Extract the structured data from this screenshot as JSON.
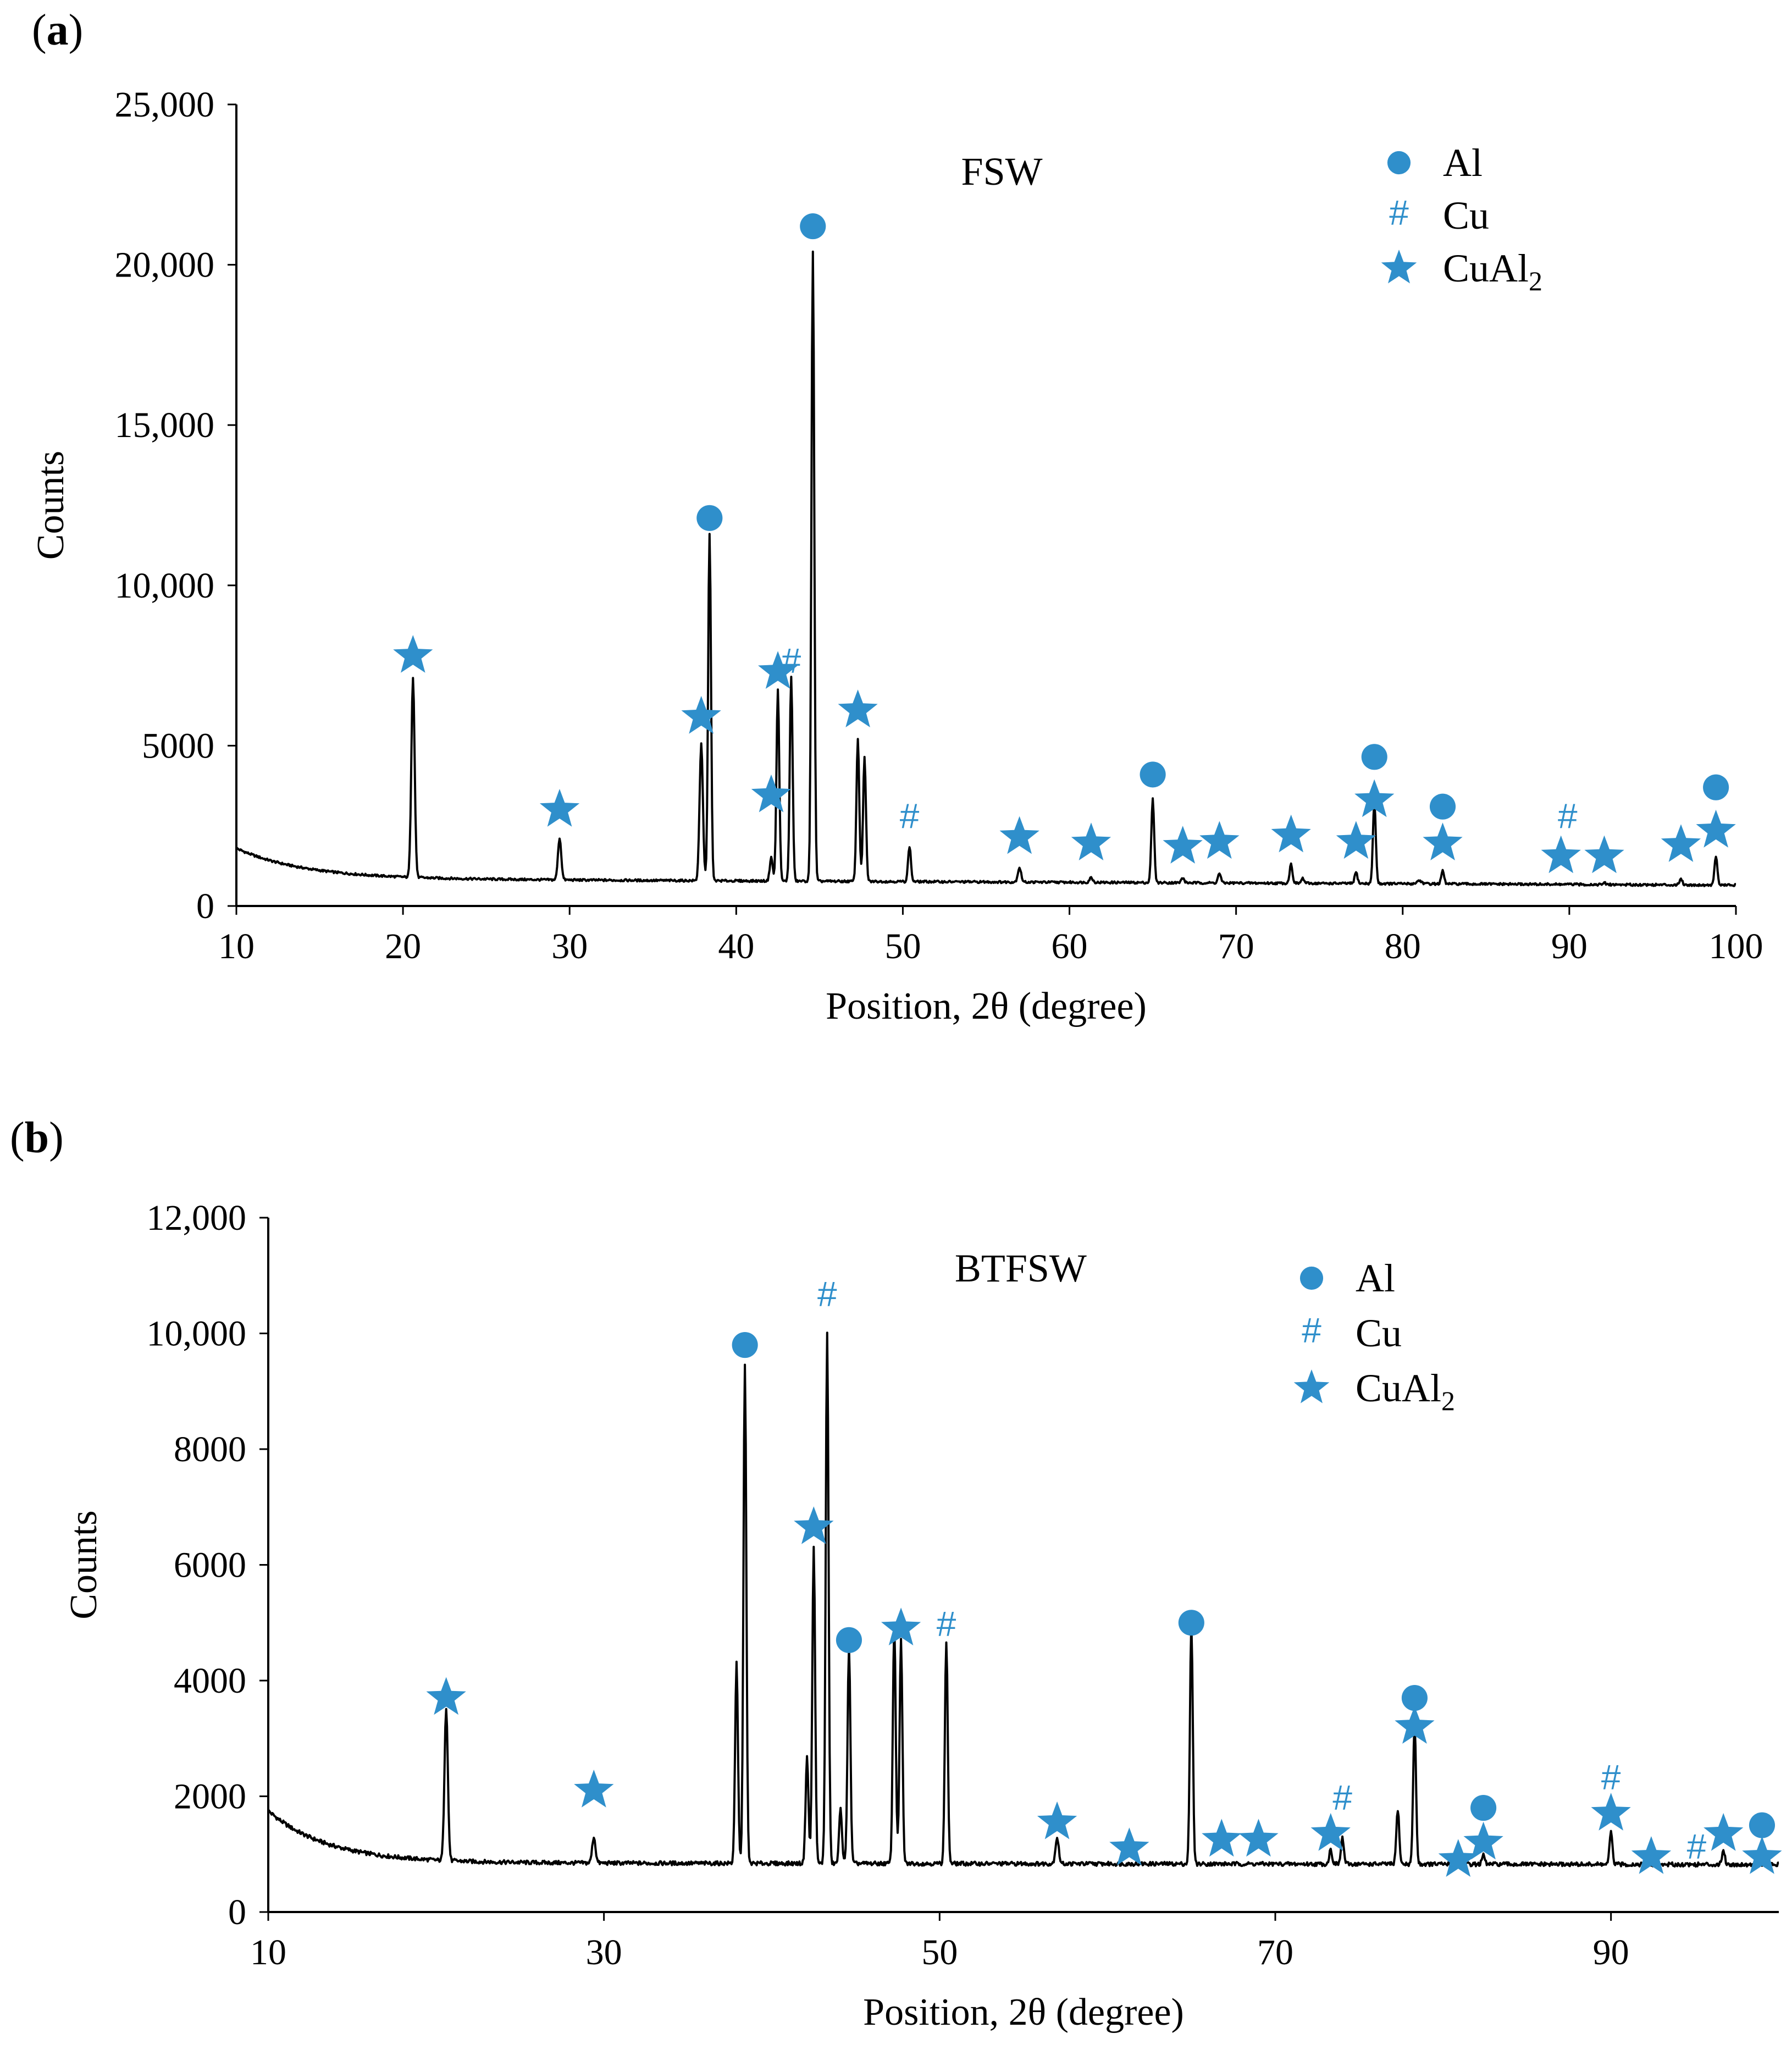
{
  "colors": {
    "marker": "#2f8fcb",
    "line": "#000000",
    "axis": "#000000"
  },
  "chart_data": [
    {
      "id": "a",
      "panel_label": "(a)",
      "type": "line",
      "sample_label": "FSW",
      "xlabel": "Position, 2θ (degree)",
      "ylabel": "Counts",
      "xlim": [
        10,
        100
      ],
      "ylim": [
        0,
        25000
      ],
      "x_ticks": [
        10,
        20,
        30,
        40,
        50,
        60,
        70,
        80,
        90,
        100
      ],
      "x_tick_labels": [
        "10",
        "20",
        "30",
        "40",
        "50",
        "60",
        "70",
        "80",
        "90",
        "100"
      ],
      "y_ticks": [
        0,
        5000,
        10000,
        15000,
        20000,
        25000
      ],
      "y_tick_labels": [
        "0",
        "5000",
        "10,000",
        "15,000",
        "20,000",
        "25,000"
      ],
      "legend": [
        {
          "marker": "circle",
          "label": "Al"
        },
        {
          "marker": "hash",
          "label": "Cu"
        },
        {
          "marker": "star",
          "label": "CuAl",
          "sub": "2"
        }
      ],
      "baseline": {
        "start": 1800,
        "floor": 850,
        "decay": 4.0,
        "tail": 650
      },
      "peaks": [
        {
          "x": 20.6,
          "y": 7100,
          "w": 0.14,
          "marker": "star",
          "my": 7800
        },
        {
          "x": 29.4,
          "y": 2150,
          "w": 0.14,
          "marker": "star",
          "my": 3000
        },
        {
          "x": 37.9,
          "y": 5100,
          "w": 0.14,
          "marker": "star",
          "my": 5900
        },
        {
          "x": 38.4,
          "y": 11700,
          "w": 0.12,
          "marker": "circle",
          "my": 12100
        },
        {
          "x": 42.1,
          "y": 1600,
          "w": 0.12,
          "marker": "star",
          "my": 3450
        },
        {
          "x": 42.5,
          "y": 6800,
          "w": 0.12,
          "marker": "star",
          "my": 7300
        },
        {
          "x": 43.3,
          "y": 7200,
          "w": 0.12,
          "marker": "hash",
          "my": 7600
        },
        {
          "x": 44.6,
          "y": 20500,
          "w": 0.12,
          "marker": "circle",
          "my": 21200
        },
        {
          "x": 47.3,
          "y": 5300,
          "w": 0.12,
          "marker": "star",
          "my": 6100
        },
        {
          "x": 47.7,
          "y": 4700,
          "w": 0.12
        },
        {
          "x": 50.4,
          "y": 1950,
          "w": 0.12,
          "marker": "hash",
          "my": 2750
        },
        {
          "x": 57.0,
          "y": 1300,
          "w": 0.14,
          "marker": "star",
          "my": 2150
        },
        {
          "x": 61.3,
          "y": 1000,
          "w": 0.14,
          "marker": "star",
          "my": 1950
        },
        {
          "x": 65.0,
          "y": 3450,
          "w": 0.12,
          "marker": "circle",
          "my": 4100
        },
        {
          "x": 66.8,
          "y": 1000,
          "w": 0.12,
          "marker": "star",
          "my": 1850
        },
        {
          "x": 69.0,
          "y": 1150,
          "w": 0.12,
          "marker": "star",
          "my": 2000
        },
        {
          "x": 73.3,
          "y": 1450,
          "w": 0.12,
          "marker": "star",
          "my": 2200
        },
        {
          "x": 74.0,
          "y": 1000,
          "w": 0.12
        },
        {
          "x": 77.2,
          "y": 1200,
          "w": 0.12,
          "marker": "star",
          "my": 2000
        },
        {
          "x": 78.3,
          "y": 3400,
          "w": 0.12,
          "marker": "star",
          "my": 3300
        },
        {
          "x": 78.3,
          "y": 0,
          "w": 0.12,
          "marker": "circle",
          "my": 4650
        },
        {
          "x": 81.0,
          "y": 950,
          "w": 0.2
        },
        {
          "x": 82.4,
          "y": 1250,
          "w": 0.12,
          "marker": "star",
          "my": 1950
        },
        {
          "x": 82.4,
          "y": 0,
          "w": 0.12,
          "marker": "circle",
          "my": 3100
        },
        {
          "x": 89.5,
          "y": 800,
          "w": 0.12,
          "marker": "star",
          "my": 1550
        },
        {
          "x": 89.9,
          "y": 850,
          "w": 0.12,
          "marker": "hash",
          "my": 2750
        },
        {
          "x": 92.1,
          "y": 900,
          "w": 0.12,
          "marker": "star",
          "my": 1550
        },
        {
          "x": 96.7,
          "y": 1050,
          "w": 0.12,
          "marker": "star",
          "my": 1900
        },
        {
          "x": 98.8,
          "y": 1750,
          "w": 0.12,
          "marker": "star",
          "my": 2350
        },
        {
          "x": 98.8,
          "y": 0,
          "w": 0.12,
          "marker": "circle",
          "my": 3700
        }
      ]
    },
    {
      "id": "b",
      "panel_label": "(b)",
      "type": "line",
      "sample_label": "BTFSW",
      "xlabel": "Position, 2θ (degree)",
      "ylabel": "Counts",
      "xlim": [
        10,
        100
      ],
      "ylim": [
        0,
        12000
      ],
      "x_ticks": [
        10,
        30,
        50,
        70,
        90
      ],
      "x_tick_labels": [
        "10",
        "30",
        "50",
        "70",
        "90"
      ],
      "y_ticks": [
        0,
        2000,
        4000,
        6000,
        8000,
        10000,
        12000
      ],
      "y_tick_labels": [
        "0",
        "2000",
        "4000",
        "6000",
        "8000",
        "10,000",
        "12,000"
      ],
      "legend": [
        {
          "marker": "circle",
          "label": "Al"
        },
        {
          "marker": "hash",
          "label": "Cu"
        },
        {
          "marker": "star",
          "label": "CuAl",
          "sub": "2"
        }
      ],
      "baseline": {
        "start": 1750,
        "floor": 850,
        "decay": 3.5,
        "tail": 820
      },
      "peaks": [
        {
          "x": 20.6,
          "y": 3500,
          "w": 0.14,
          "marker": "star",
          "my": 3700
        },
        {
          "x": 29.4,
          "y": 1300,
          "w": 0.14,
          "marker": "star",
          "my": 2100
        },
        {
          "x": 37.9,
          "y": 4300,
          "w": 0.12
        },
        {
          "x": 38.4,
          "y": 9500,
          "w": 0.12,
          "marker": "circle",
          "my": 9800
        },
        {
          "x": 42.1,
          "y": 2700,
          "w": 0.12
        },
        {
          "x": 42.5,
          "y": 6300,
          "w": 0.12,
          "marker": "star",
          "my": 6650
        },
        {
          "x": 43.3,
          "y": 10000,
          "w": 0.12,
          "marker": "hash",
          "my": 10650
        },
        {
          "x": 44.1,
          "y": 1800,
          "w": 0.12
        },
        {
          "x": 44.6,
          "y": 4600,
          "w": 0.12,
          "marker": "circle",
          "my": 4700
        },
        {
          "x": 47.3,
          "y": 5000,
          "w": 0.12
        },
        {
          "x": 47.7,
          "y": 4700,
          "w": 0.12,
          "marker": "star",
          "my": 4900
        },
        {
          "x": 50.4,
          "y": 4700,
          "w": 0.12,
          "marker": "hash",
          "my": 4950
        },
        {
          "x": 57.0,
          "y": 1300,
          "w": 0.14,
          "marker": "star",
          "my": 1550
        },
        {
          "x": 61.3,
          "y": 800,
          "w": 0.14,
          "marker": "star",
          "my": 1100
        },
        {
          "x": 65.0,
          "y": 5000,
          "w": 0.12,
          "marker": "circle",
          "my": 5000
        },
        {
          "x": 66.8,
          "y": 800,
          "w": 0.12,
          "marker": "star",
          "my": 1250
        },
        {
          "x": 69.0,
          "y": 800,
          "w": 0.12,
          "marker": "star",
          "my": 1250
        },
        {
          "x": 73.3,
          "y": 1100,
          "w": 0.12,
          "marker": "star",
          "my": 1350
        },
        {
          "x": 74.0,
          "y": 1300,
          "w": 0.12,
          "marker": "hash",
          "my": 1950
        },
        {
          "x": 77.3,
          "y": 1800,
          "w": 0.12
        },
        {
          "x": 78.3,
          "y": 3300,
          "w": 0.12,
          "marker": "star",
          "my": 3200
        },
        {
          "x": 78.3,
          "y": 0,
          "w": 0.12,
          "marker": "circle",
          "my": 3700
        },
        {
          "x": 80.9,
          "y": 650,
          "w": 0.12,
          "marker": "star",
          "my": 900
        },
        {
          "x": 82.4,
          "y": 1000,
          "w": 0.12,
          "marker": "star",
          "my": 1200
        },
        {
          "x": 82.4,
          "y": 0,
          "w": 0.12,
          "marker": "circle",
          "my": 1800
        },
        {
          "x": 90.0,
          "y": 1400,
          "w": 0.12,
          "marker": "star",
          "my": 1700
        },
        {
          "x": 90.0,
          "y": 0,
          "w": 0.12,
          "marker": "hash",
          "my": 2300
        },
        {
          "x": 92.4,
          "y": 650,
          "w": 0.12,
          "marker": "star",
          "my": 950
        },
        {
          "x": 95.1,
          "y": 650,
          "w": 0.12,
          "marker": "hash",
          "my": 1100
        },
        {
          "x": 96.7,
          "y": 1100,
          "w": 0.12,
          "marker": "star",
          "my": 1350
        },
        {
          "x": 99.0,
          "y": 650,
          "w": 0.12,
          "marker": "circle",
          "my": 1500
        },
        {
          "x": 99.0,
          "y": 0,
          "w": 0.12,
          "marker": "star",
          "my": 950
        }
      ]
    }
  ]
}
